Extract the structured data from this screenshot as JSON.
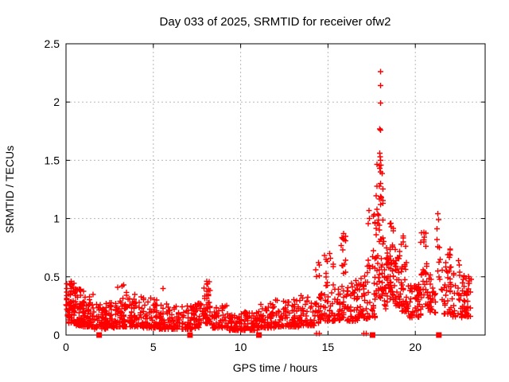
{
  "figure": {
    "background": "#ffffff"
  },
  "chart_data": {
    "type": "scatter",
    "title": "Day 033 of 2025, SRMTID for receiver ofw2",
    "xlabel": "GPS time / hours",
    "ylabel": "SRMTID / TECUs",
    "xlim": [
      0,
      24
    ],
    "ylim": [
      0,
      2.5
    ],
    "xticks": [
      0,
      5,
      10,
      15,
      20
    ],
    "yticks": [
      0,
      0.5,
      1,
      1.5,
      2,
      2.5
    ],
    "grid": true,
    "legend_position": "none",
    "marker": "plus",
    "marker_color": "#ff0000",
    "grid_color": "#b8b8b8",
    "axis_color": "#000000",
    "render_seed": 20250133,
    "band_segments": [
      [
        0.0,
        0.5,
        70,
        0.1,
        0.45,
        1.6
      ],
      [
        0.5,
        1.0,
        65,
        0.08,
        0.42,
        1.8
      ],
      [
        1.0,
        1.6,
        60,
        0.07,
        0.35,
        1.9
      ],
      [
        1.6,
        2.3,
        55,
        0.05,
        0.28,
        1.8
      ],
      [
        2.3,
        2.9,
        45,
        0.06,
        0.3,
        1.8
      ],
      [
        2.9,
        3.6,
        55,
        0.07,
        0.42,
        2.2
      ],
      [
        3.6,
        4.4,
        60,
        0.07,
        0.37,
        2.0
      ],
      [
        4.4,
        5.2,
        55,
        0.06,
        0.32,
        2.0
      ],
      [
        5.2,
        6.2,
        65,
        0.05,
        0.28,
        1.9
      ],
      [
        6.2,
        7.4,
        75,
        0.05,
        0.26,
        1.9
      ],
      [
        7.4,
        7.85,
        30,
        0.06,
        0.28,
        1.8
      ],
      [
        7.85,
        8.3,
        40,
        0.1,
        0.46,
        1.5
      ],
      [
        8.3,
        9.2,
        55,
        0.06,
        0.26,
        1.9
      ],
      [
        9.2,
        10.2,
        65,
        0.04,
        0.18,
        1.6
      ],
      [
        10.2,
        11.0,
        55,
        0.04,
        0.2,
        1.7
      ],
      [
        11.0,
        12.0,
        70,
        0.06,
        0.28,
        2.0
      ],
      [
        12.0,
        13.3,
        85,
        0.07,
        0.32,
        2.0
      ],
      [
        13.3,
        14.25,
        60,
        0.08,
        0.34,
        1.9
      ],
      [
        14.3,
        14.7,
        30,
        0.1,
        0.62,
        1.8
      ],
      [
        14.7,
        15.35,
        40,
        0.12,
        0.7,
        2.2
      ],
      [
        15.35,
        15.75,
        28,
        0.12,
        0.4,
        1.7
      ],
      [
        15.75,
        16.1,
        30,
        0.15,
        0.87,
        1.6
      ],
      [
        16.1,
        16.85,
        50,
        0.12,
        0.48,
        1.9
      ],
      [
        16.85,
        17.3,
        32,
        0.14,
        0.7,
        1.8
      ],
      [
        17.3,
        17.75,
        32,
        0.15,
        1.05,
        1.9
      ],
      [
        17.75,
        18.2,
        60,
        0.3,
        1.55,
        1.5
      ],
      [
        18.2,
        18.5,
        30,
        0.22,
        0.75,
        1.5
      ],
      [
        18.5,
        18.8,
        32,
        0.28,
        0.97,
        1.4
      ],
      [
        18.8,
        19.15,
        35,
        0.25,
        0.8,
        1.6
      ],
      [
        19.15,
        19.5,
        32,
        0.2,
        0.86,
        1.7
      ],
      [
        19.5,
        20.3,
        55,
        0.15,
        0.45,
        1.6
      ],
      [
        20.3,
        20.7,
        30,
        0.22,
        0.9,
        1.6
      ],
      [
        20.7,
        21.2,
        32,
        0.18,
        0.55,
        1.6
      ],
      [
        21.25,
        21.45,
        6,
        0.45,
        1.05,
        1.0
      ],
      [
        21.45,
        22.1,
        45,
        0.18,
        0.75,
        2.0
      ],
      [
        22.1,
        23.2,
        70,
        0.15,
        0.55,
        1.8
      ]
    ],
    "peak_points": [
      [
        0.3,
        0.46
      ],
      [
        3.3,
        0.43
      ],
      [
        5.55,
        0.4
      ],
      [
        8.05,
        0.46
      ],
      [
        8.1,
        0.44
      ],
      [
        14.45,
        0.62
      ],
      [
        14.5,
        0.6
      ],
      [
        15.1,
        0.7
      ],
      [
        15.15,
        0.66
      ],
      [
        15.9,
        0.87
      ],
      [
        15.92,
        0.82
      ],
      [
        17.35,
        1.07
      ],
      [
        17.38,
        1.0
      ],
      [
        17.96,
        1.56
      ],
      [
        17.99,
        1.53
      ],
      [
        18.02,
        1.5
      ],
      [
        18.04,
        1.46
      ],
      [
        17.97,
        1.43
      ],
      [
        18.01,
        1.4
      ],
      [
        17.97,
        1.77
      ],
      [
        18.02,
        1.76
      ],
      [
        18.0,
        1.99
      ],
      [
        18.0,
        2.14
      ],
      [
        18.0,
        2.26
      ],
      [
        18.6,
        0.96
      ],
      [
        18.62,
        0.93
      ],
      [
        19.3,
        0.85
      ],
      [
        19.32,
        0.8
      ],
      [
        20.5,
        0.88
      ],
      [
        20.52,
        0.84
      ],
      [
        21.3,
        1.04
      ],
      [
        21.33,
        0.99
      ],
      [
        21.38,
        0.75
      ],
      [
        21.42,
        0.65
      ],
      [
        21.28,
        0.55
      ],
      [
        22.48,
        0.64
      ],
      [
        22.52,
        0.6
      ],
      [
        14.35,
        0.012
      ],
      [
        14.5,
        0.012
      ],
      [
        17.05,
        0.012
      ],
      [
        17.2,
        0.012
      ]
    ],
    "zero_squares_x": [
      1.9,
      7.1,
      11.05,
      17.55,
      21.35
    ]
  }
}
